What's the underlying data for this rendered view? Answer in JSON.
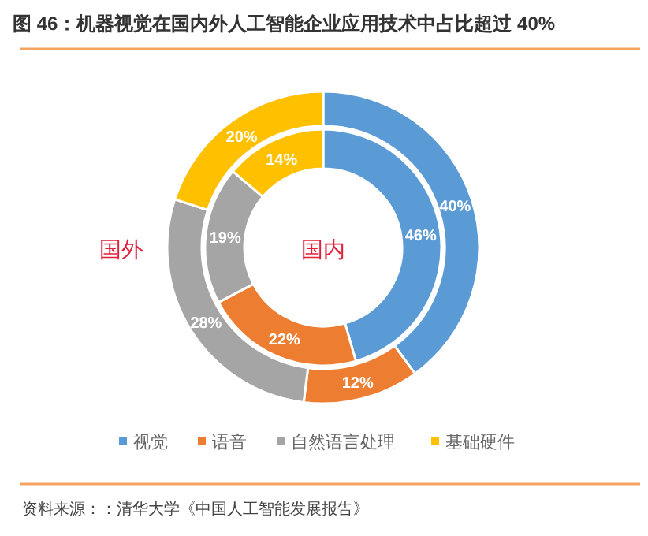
{
  "chart_data": {
    "type": "donut",
    "title": "图 46：机器视觉在国内外人工智能企业应用技术中占比超过 40%",
    "categories": [
      "视觉",
      "语音",
      "自然语言处理",
      "基础硬件"
    ],
    "colors": [
      "#5b9bd5",
      "#ed7d31",
      "#a5a5a5",
      "#ffc000"
    ],
    "series": [
      {
        "name": "国外",
        "values": [
          40,
          12,
          28,
          20
        ],
        "value_labels": [
          "40%",
          "12%",
          "28%",
          "20%"
        ]
      },
      {
        "name": "国内",
        "values": [
          46,
          22,
          19,
          14
        ],
        "value_labels": [
          "46%",
          "22%",
          "19%",
          "14%"
        ]
      }
    ],
    "legend": "bottom",
    "annotations": [
      "资料来源：：清华大学《中国人工智能发展报告》"
    ]
  }
}
